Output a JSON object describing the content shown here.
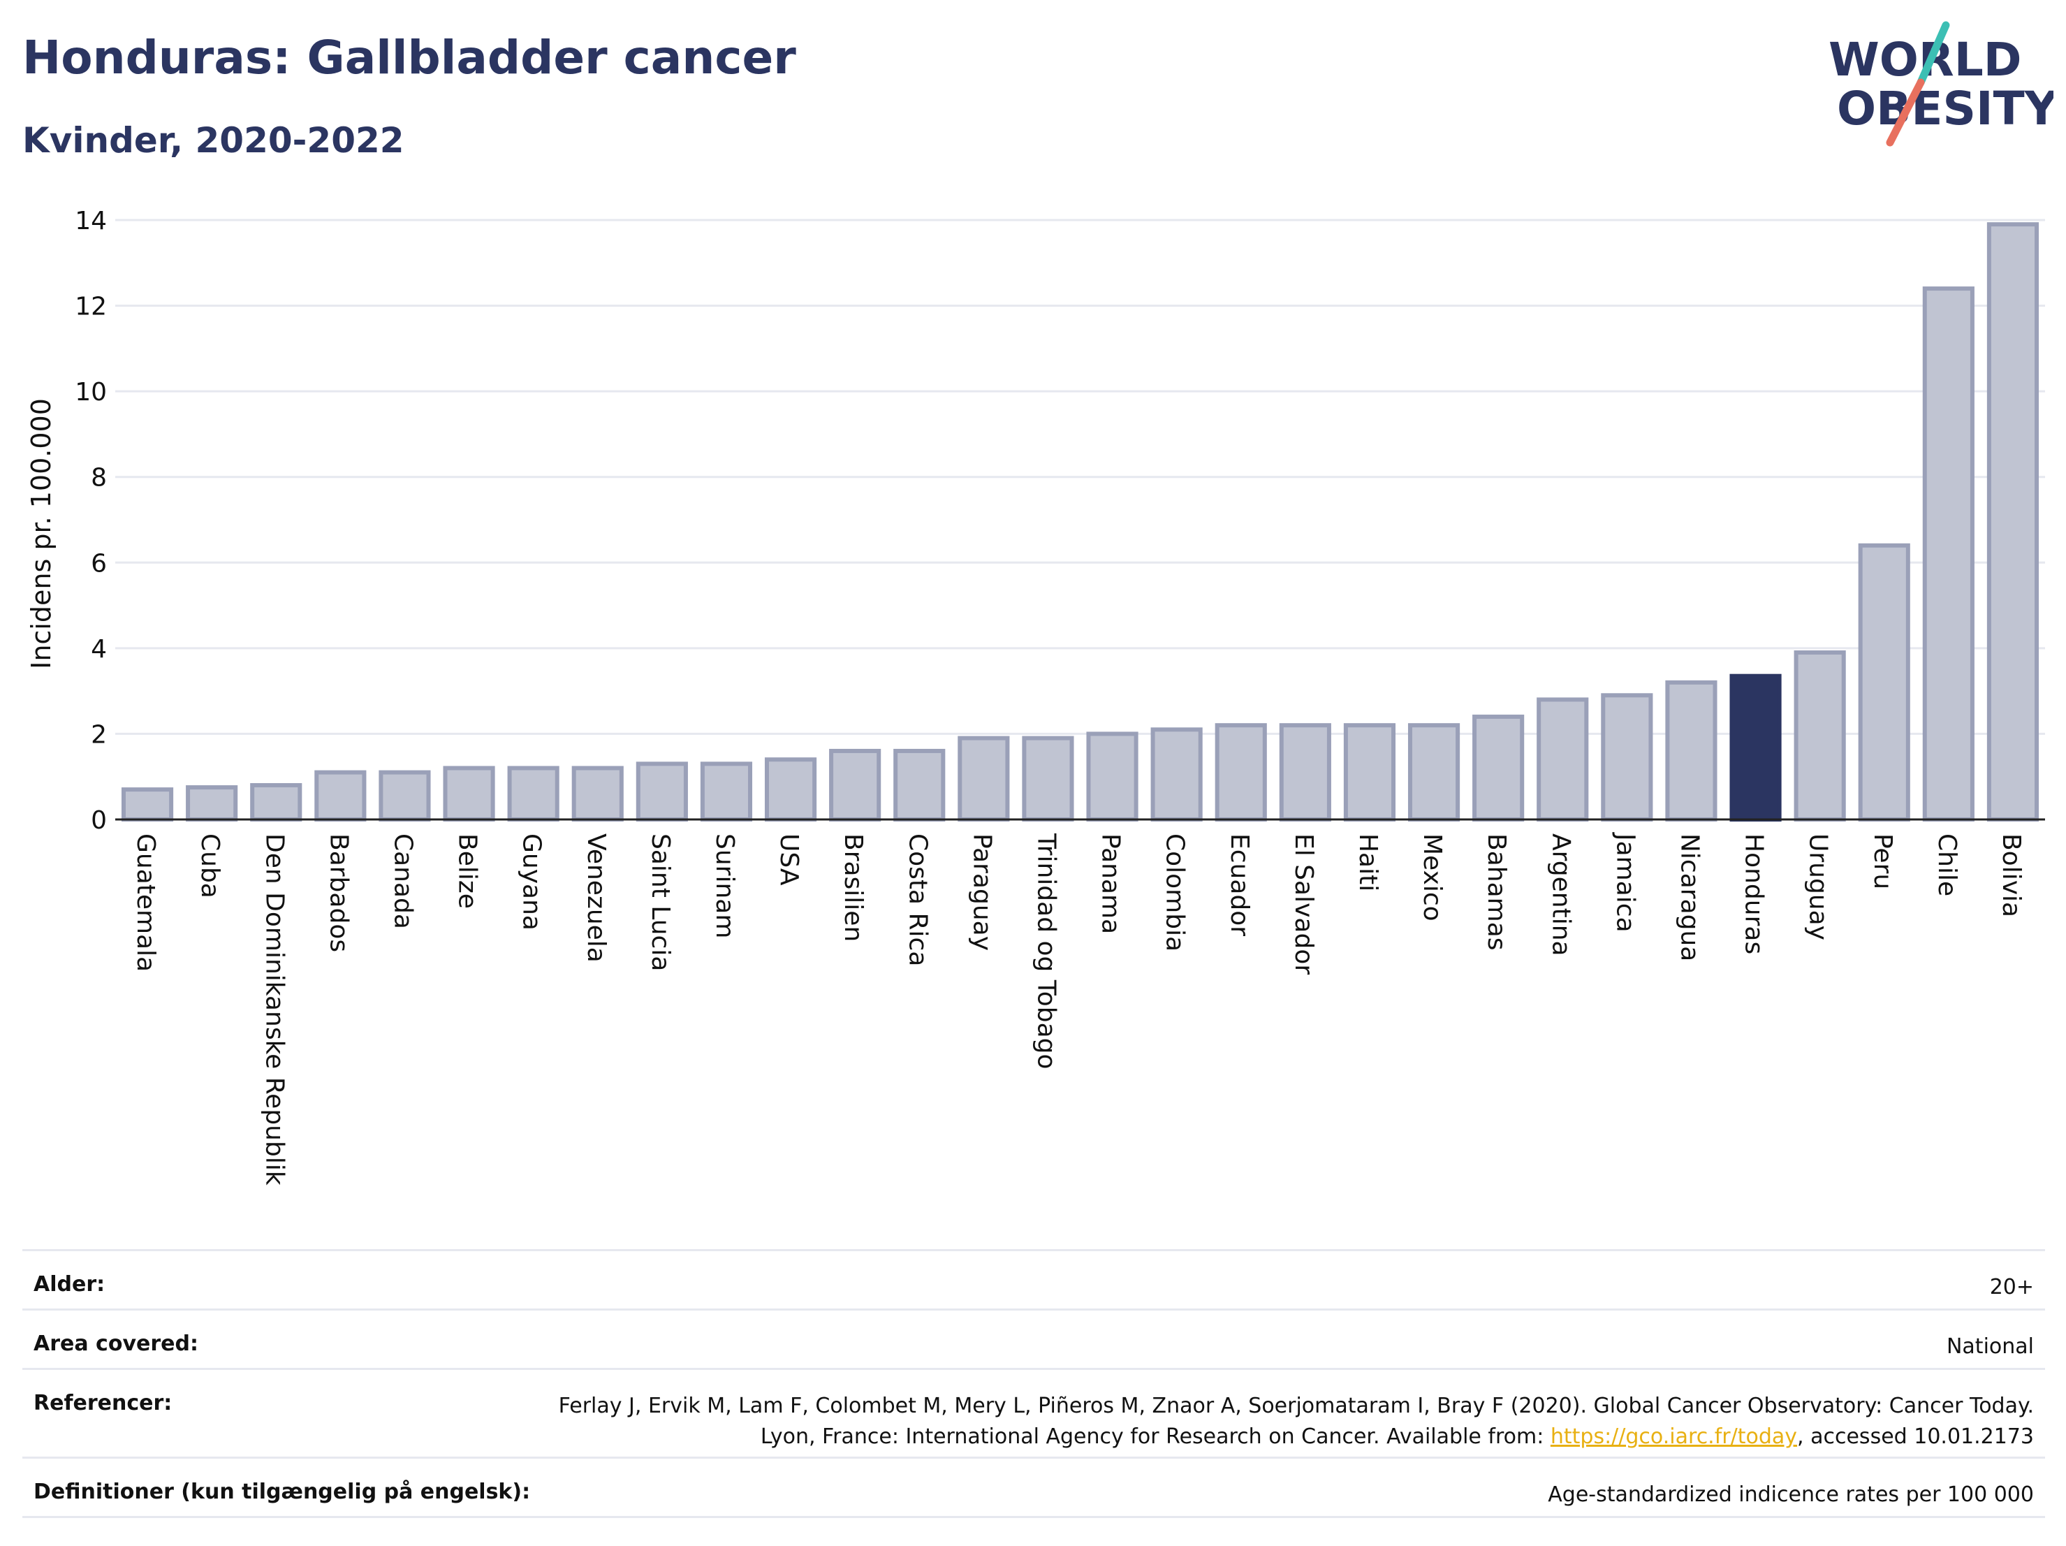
{
  "header": {
    "title": "Honduras: Gallbladder cancer",
    "subtitle": "Kvinder, 2020-2022"
  },
  "logo": {
    "line1": "WORLD",
    "line2": "OBESITY",
    "colors": {
      "text": "#2b3561",
      "slash_teal": "#3cbfb4",
      "slash_coral": "#e8705e"
    }
  },
  "colors": {
    "bar": "#c0c4d2",
    "bar_border": "#9aa0b8",
    "highlight": "#2b3561",
    "grid": "#e6e8ef",
    "axis_text": "#111111"
  },
  "chart_data": {
    "type": "bar",
    "ylabel": "Incidens pr. 100.000",
    "ylim": [
      0,
      14
    ],
    "yticks": [
      0,
      2,
      4,
      6,
      8,
      10,
      12,
      14
    ],
    "grid": true,
    "highlight": "Honduras",
    "categories": [
      "Guatemala",
      "Cuba",
      "Den Dominikanske Republik",
      "Barbados",
      "Canada",
      "Belize",
      "Guyana",
      "Venezuela",
      "Saint Lucia",
      "Surinam",
      "USA",
      "Brasilien",
      "Costa Rica",
      "Paraguay",
      "Trinidad og Tobago",
      "Panama",
      "Colombia",
      "Ecuador",
      "El Salvador",
      "Haiti",
      "Mexico",
      "Bahamas",
      "Argentina",
      "Jamaica",
      "Nicaragua",
      "Honduras",
      "Uruguay",
      "Peru",
      "Chile",
      "Bolivia"
    ],
    "values": [
      0.7,
      0.75,
      0.8,
      1.1,
      1.1,
      1.2,
      1.2,
      1.2,
      1.3,
      1.3,
      1.4,
      1.6,
      1.6,
      1.9,
      1.9,
      2.0,
      2.1,
      2.2,
      2.2,
      2.2,
      2.2,
      2.4,
      2.8,
      2.9,
      3.2,
      3.35,
      3.9,
      6.4,
      12.4,
      13.9
    ]
  },
  "meta": {
    "age_label": "Alder:",
    "age_value": "20+",
    "area_label": "Area covered:",
    "area_value": "National",
    "ref_label": "Referencer:",
    "ref_text_1": "Ferlay J, Ervik M, Lam F, Colombet M, Mery L, Piñeros M, Znaor A, Soerjomataram I, Bray F (2020). Global Cancer Observatory: Cancer Today. Lyon, France: International Agency for Research on Cancer. Available from: ",
    "ref_link": "https://gco.iarc.fr/today",
    "ref_text_2": ", accessed 10.01.2173",
    "def_label": "Definitioner (kun tilgængelig på engelsk):",
    "def_value": "Age-standardized indicence rates per 100 000"
  }
}
